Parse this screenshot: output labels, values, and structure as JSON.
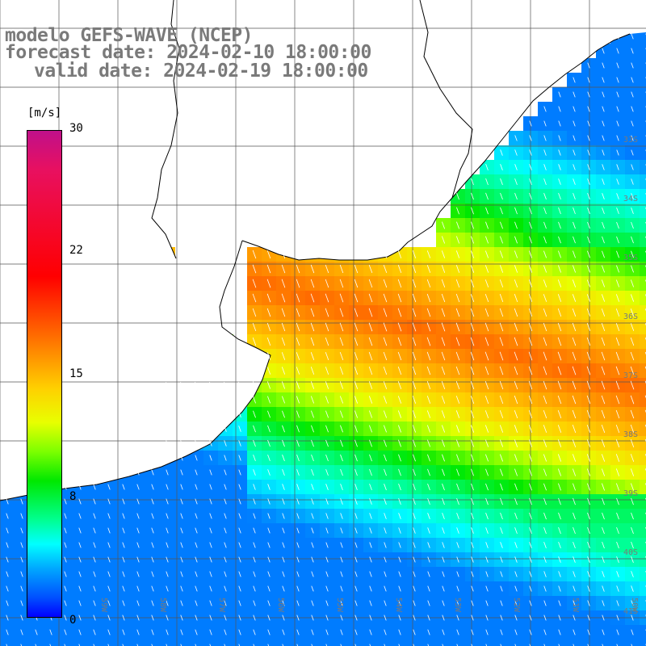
{
  "title": {
    "line1": "modelo GEFS-WAVE (NCEP)",
    "line2": "forecast date: 2024-02-10 18:00:00",
    "line3": "valid date: 2024-02-19 18:00:00"
  },
  "colorbar": {
    "unit": "[m/s]",
    "ticks": [
      "30",
      "22",
      "15",
      "8",
      "0"
    ],
    "colors": [
      "#c0108a",
      "#ff0000",
      "#ff6a00",
      "#ffd000",
      "#7cff00",
      "#00e800",
      "#00ffff",
      "#0050ff",
      "#0000ff"
    ]
  },
  "latitude_labels": [
    "33S",
    "34S",
    "35S",
    "36S",
    "37S",
    "38S",
    "39S",
    "40S",
    "41S"
  ],
  "longitude_labels": [
    "61W",
    "60W",
    "59W",
    "58W",
    "57W",
    "56W",
    "55W",
    "54W",
    "53W",
    "52W",
    "51W",
    "50W"
  ],
  "field": {
    "variable": "wind speed",
    "unit": "m/s",
    "vmin": 0,
    "vmax": 30
  }
}
